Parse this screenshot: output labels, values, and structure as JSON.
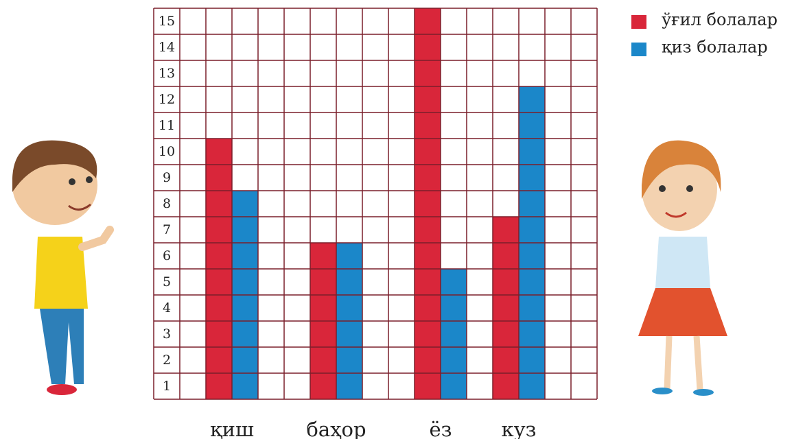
{
  "chart_data": {
    "type": "bar",
    "categories": [
      "қиш",
      "баҳор",
      "ёз",
      "куз"
    ],
    "series": [
      {
        "name": "ўғил болалар",
        "color": "#d9263a",
        "values": [
          10,
          6,
          15,
          7
        ]
      },
      {
        "name": "қиз болалар",
        "color": "#1b87c9",
        "values": [
          8,
          6,
          5,
          12
        ]
      }
    ],
    "ylim": [
      0,
      15
    ],
    "yticks": [
      1,
      2,
      3,
      4,
      5,
      6,
      7,
      8,
      9,
      10,
      11,
      12,
      13,
      14,
      15
    ],
    "grid": true,
    "legend": "top-right"
  }
}
